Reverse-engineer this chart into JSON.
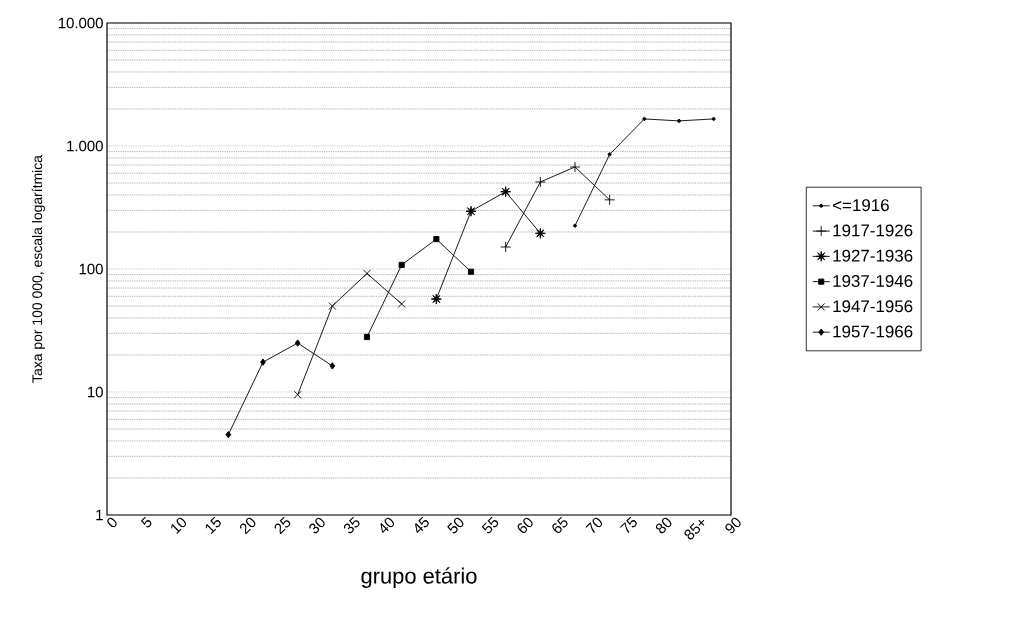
{
  "chart_data": {
    "type": "line",
    "xlabel": "grupo etário",
    "ylabel": "Taxa por 100 000, escala logarítmica",
    "log": "y",
    "grid": "y",
    "legend": "right",
    "xlim": [
      0,
      90
    ],
    "xticks": [
      0,
      5,
      10,
      15,
      20,
      25,
      30,
      35,
      40,
      45,
      50,
      55,
      60,
      65,
      70,
      75,
      80,
      {
        "value": 85,
        "label": "85+"
      },
      90
    ],
    "ylim": [
      1,
      10000
    ],
    "yticks": [
      1,
      10,
      100,
      {
        "value": 1000,
        "label": "1.000"
      },
      {
        "value": 10000,
        "label": "10.000"
      }
    ],
    "series": [
      {
        "name": "<=1916",
        "color": "#000000",
        "marker": "circle",
        "x": [
          67.5,
          72.5,
          77.5,
          82.5,
          87.5
        ],
        "values": [
          225,
          855,
          1660,
          1600,
          1660
        ]
      },
      {
        "name": "1917-1926",
        "color": "#000000",
        "marker": "plus",
        "x": [
          57.5,
          62.5,
          67.5,
          72.5
        ],
        "values": [
          151,
          510,
          675,
          365
        ]
      },
      {
        "name": "1927-1936",
        "color": "#000000",
        "marker": "star",
        "x": [
          47.5,
          52.5,
          57.5,
          62.5
        ],
        "values": [
          57,
          295,
          425,
          195
        ]
      },
      {
        "name": "1937-1946",
        "color": "#000000",
        "marker": "square",
        "x": [
          37.5,
          42.5,
          47.5,
          52.5
        ],
        "values": [
          28,
          108,
          175,
          95
        ]
      },
      {
        "name": "1947-1956",
        "color": "#000000",
        "marker": "cross",
        "x": [
          27.5,
          32.5,
          37.5,
          42.5
        ],
        "values": [
          9.5,
          50,
          92,
          52
        ]
      },
      {
        "name": "1957-1966",
        "color": "#000000",
        "marker": "diamond",
        "x": [
          17.5,
          22.5,
          27.5,
          32.5
        ],
        "values": [
          4.5,
          17.5,
          25,
          16.3
        ]
      }
    ]
  }
}
